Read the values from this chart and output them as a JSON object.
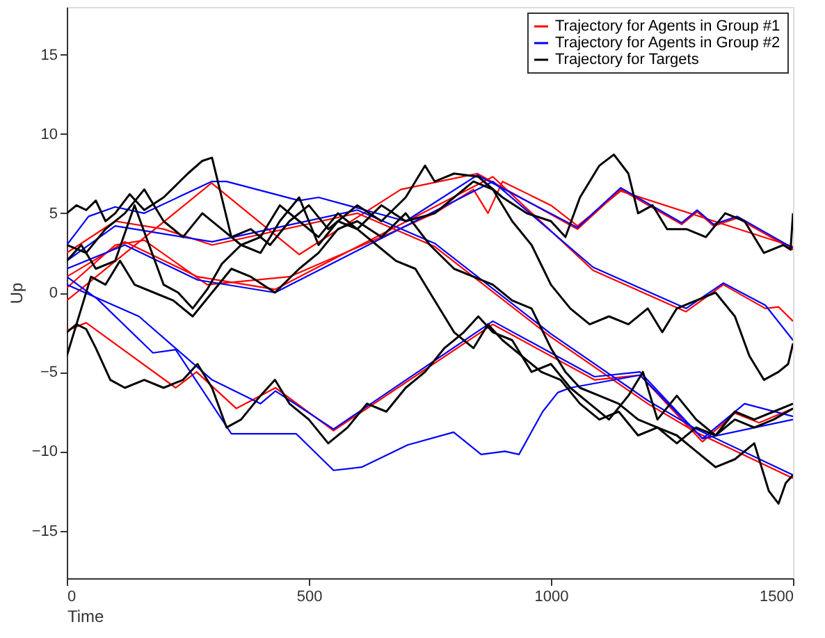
{
  "chart_data": {
    "type": "line",
    "xlabel": "Time",
    "ylabel": "Up",
    "xlim": [
      0,
      1500
    ],
    "xticks": [
      0,
      500,
      1000,
      1500
    ],
    "ylim": [
      -18,
      18
    ],
    "yticks": [
      -15,
      -10,
      -5,
      0,
      5,
      10,
      15
    ],
    "grid": false,
    "legend": "top right",
    "marker": "none",
    "line_style": "solid",
    "series": [
      {
        "name": "Trajectory for Agents in Group #1",
        "color": "#ff0000",
        "x": [
          0,
          299,
          480,
          690,
          848,
          1055,
          1144,
          1270,
          1302,
          1336,
          1385,
          1500
        ],
        "values": [
          -0.5,
          6.9,
          2.4,
          6.5,
          7.5,
          4.0,
          6.5,
          4.3,
          5.1,
          4.2,
          4.7,
          2.7
        ]
      },
      {
        "color": "#ff0000",
        "x": [
          0,
          120,
          270,
          430,
          880,
          1087,
          1279,
          1356,
          1443,
          1470,
          1500
        ],
        "values": [
          1.0,
          3.2,
          1.0,
          0.2,
          7.3,
          1.4,
          -1.2,
          0.5,
          -1.0,
          -0.9,
          -1.8
        ]
      },
      {
        "color": "#ff0000",
        "x": [
          0,
          40,
          225,
          268,
          350,
          431,
          551,
          880,
          1090,
          1184,
          1313,
          1380,
          1430,
          1500
        ],
        "values": [
          -2.4,
          -1.9,
          -6.0,
          -5.0,
          -7.3,
          -6.0,
          -8.7,
          -2.0,
          -5.5,
          -5.2,
          -9.4,
          -7.6,
          -8.2,
          -7.3
        ]
      },
      {
        "color": "#ff0000",
        "x": [
          0,
          100,
          200,
          300,
          600,
          760,
          1000,
          1200,
          1300,
          1500
        ],
        "values": [
          2.5,
          4.5,
          4.0,
          3.0,
          5.0,
          2.9,
          -2.8,
          -7.0,
          -8.8,
          -11.7
        ]
      },
      {
        "color": "#ff0000",
        "x": [
          0,
          100,
          160,
          290,
          460,
          650,
          760,
          840,
          870,
          900,
          1000,
          1055,
          1144,
          1500
        ],
        "values": [
          0.3,
          3.0,
          3.3,
          0.5,
          1.0,
          3.5,
          5.0,
          6.5,
          5.0,
          7.0,
          5.5,
          4.2,
          6.4,
          2.9
        ]
      },
      {
        "name": "Trajectory for Agents in Group #2",
        "color": "#0000ff",
        "x": [
          0,
          45,
          100,
          160,
          299,
          330,
          480,
          520,
          700,
          848,
          1055,
          1144,
          1270,
          1302,
          1336,
          1385,
          1500
        ],
        "values": [
          3.0,
          4.8,
          5.4,
          5.0,
          7.0,
          7.0,
          5.8,
          6.0,
          4.5,
          7.4,
          4.1,
          6.6,
          4.4,
          5.2,
          4.3,
          4.8,
          2.8
        ]
      },
      {
        "color": "#0000ff",
        "x": [
          0,
          120,
          270,
          430,
          880,
          1087,
          1279,
          1356,
          1443,
          1500
        ],
        "values": [
          1.5,
          3.0,
          0.8,
          0.0,
          7.0,
          1.6,
          -1.0,
          0.6,
          -0.8,
          -3.0
        ]
      },
      {
        "color": "#0000ff",
        "x": [
          0,
          63,
          178,
          225,
          340,
          474,
          551,
          609,
          704,
          799,
          856,
          905,
          934,
          983,
          1014,
          1040,
          1184,
          1313,
          1400,
          1500
        ],
        "values": [
          1.0,
          -0.4,
          -3.8,
          -3.6,
          -8.9,
          -8.9,
          -11.2,
          -11.0,
          -9.6,
          -8.8,
          -10.2,
          -10.0,
          -10.2,
          -7.5,
          -6.3,
          -6.0,
          -5.2,
          -9.2,
          -7.0,
          -7.8
        ]
      },
      {
        "color": "#0000ff",
        "x": [
          0,
          149,
          300,
          400,
          431,
          551,
          880,
          1090,
          1184,
          1313,
          1500
        ],
        "values": [
          0.5,
          -1.5,
          -5.5,
          -7.0,
          -6.2,
          -8.6,
          -1.8,
          -5.3,
          -5.0,
          -9.2,
          -8.0
        ]
      },
      {
        "color": "#0000ff",
        "x": [
          0,
          100,
          300,
          600,
          760,
          1000,
          1200,
          1300,
          1500
        ],
        "values": [
          2.0,
          4.2,
          3.2,
          5.2,
          3.1,
          -2.6,
          -6.8,
          -8.6,
          -11.5
        ]
      },
      {
        "name": "Trajectory for Targets",
        "color": "#000000",
        "x": [
          0,
          20,
          40,
          60,
          80,
          100,
          130,
          160,
          200,
          250,
          280,
          300,
          320,
          340,
          380,
          420,
          460,
          500,
          540,
          600,
          650,
          700,
          740,
          760,
          800,
          850,
          900,
          950,
          1000,
          1030,
          1060,
          1100,
          1130,
          1160,
          1180,
          1210,
          1240,
          1280,
          1320,
          1360,
          1400,
          1440,
          1480,
          1495,
          1500
        ],
        "values": [
          5.0,
          5.5,
          5.2,
          5.8,
          4.5,
          5.0,
          6.2,
          5.2,
          6.0,
          7.5,
          8.3,
          8.5,
          6.0,
          3.5,
          4.0,
          3.0,
          4.5,
          5.5,
          4.0,
          5.5,
          4.5,
          6.0,
          8.0,
          7.0,
          7.5,
          7.3,
          6.0,
          5.0,
          4.5,
          3.5,
          6.0,
          8.0,
          8.7,
          7.5,
          5.0,
          5.5,
          4.0,
          4.0,
          3.5,
          5.0,
          4.5,
          2.5,
          3.0,
          2.7,
          5.0
        ]
      },
      {
        "color": "#000000",
        "x": [
          0,
          30,
          60,
          100,
          140,
          170,
          200,
          230,
          260,
          290,
          320,
          360,
          400,
          440,
          480,
          520,
          560,
          600,
          650,
          700,
          760,
          800,
          840,
          880,
          920,
          960,
          1000,
          1040,
          1080,
          1120,
          1160,
          1200,
          1230,
          1260,
          1300,
          1340,
          1380,
          1410,
          1440,
          1470,
          1490,
          1500
        ],
        "values": [
          2.0,
          3.0,
          1.5,
          2.0,
          5.5,
          3.0,
          0.5,
          0.0,
          -1.0,
          0.2,
          1.8,
          3.0,
          2.5,
          4.5,
          6.0,
          3.0,
          4.5,
          4.0,
          5.5,
          4.5,
          5.0,
          6.0,
          7.0,
          6.5,
          4.5,
          3.0,
          0.5,
          -1.0,
          -2.0,
          -1.5,
          -2.0,
          -1.0,
          -2.5,
          -1.0,
          -0.5,
          0.0,
          -1.5,
          -4.0,
          -5.5,
          -5.0,
          -4.5,
          -3.2
        ]
      },
      {
        "color": "#000000",
        "x": [
          0,
          20,
          40,
          60,
          90,
          120,
          160,
          200,
          240,
          270,
          300,
          330,
          360,
          400,
          430,
          460,
          500,
          540,
          580,
          620,
          660,
          700,
          740,
          780,
          820,
          850,
          880,
          920,
          960,
          1000,
          1040,
          1080,
          1120,
          1160,
          1190,
          1220,
          1260,
          1300,
          1340,
          1380,
          1420,
          1460,
          1500
        ],
        "values": [
          -2.5,
          -2.0,
          -2.3,
          -3.5,
          -5.5,
          -6.0,
          -5.5,
          -6.0,
          -5.5,
          -4.5,
          -6.0,
          -8.5,
          -8.0,
          -6.5,
          -5.5,
          -7.0,
          -8.0,
          -9.5,
          -8.5,
          -7.0,
          -7.5,
          -6.0,
          -5.0,
          -3.5,
          -2.5,
          -1.5,
          -2.5,
          -3.0,
          -5.0,
          -4.5,
          -6.0,
          -7.0,
          -8.0,
          -6.5,
          -5.0,
          -8.0,
          -6.5,
          -8.0,
          -9.0,
          -7.5,
          -8.0,
          -7.5,
          -7.0
        ]
      },
      {
        "color": "#000000",
        "x": [
          0,
          20,
          50,
          80,
          110,
          140,
          180,
          220,
          260,
          300,
          340,
          380,
          430,
          480,
          520,
          560,
          600,
          650,
          700,
          750,
          800,
          840,
          880,
          920,
          960,
          1000,
          1030,
          1060,
          1100,
          1140,
          1180,
          1220,
          1260,
          1300,
          1340,
          1380,
          1420,
          1450,
          1470,
          1485,
          1500
        ],
        "values": [
          -4.0,
          -2.0,
          1.0,
          0.5,
          2.0,
          0.5,
          0.0,
          -0.5,
          -1.5,
          0.0,
          1.5,
          1.0,
          0.0,
          1.5,
          2.5,
          4.0,
          4.5,
          3.5,
          5.0,
          3.0,
          1.5,
          1.0,
          0.5,
          -0.5,
          -1.0,
          -3.5,
          -5.0,
          -6.0,
          -6.5,
          -7.0,
          -8.0,
          -8.5,
          -9.0,
          -10.0,
          -11.0,
          -10.5,
          -9.5,
          -12.5,
          -13.3,
          -12.0,
          -11.5
        ]
      },
      {
        "color": "#000000",
        "x": [
          0,
          40,
          80,
          120,
          160,
          200,
          240,
          280,
          320,
          360,
          400,
          440,
          480,
          520,
          560,
          600,
          640,
          680,
          720,
          760,
          800,
          840,
          870,
          900,
          940,
          980,
          1020,
          1060,
          1100,
          1140,
          1180,
          1220,
          1260,
          1300,
          1340,
          1380,
          1420,
          1460,
          1500
        ],
        "values": [
          3.0,
          2.5,
          4.0,
          5.0,
          6.5,
          4.5,
          3.5,
          5.0,
          4.0,
          3.0,
          3.5,
          5.5,
          4.5,
          3.5,
          5.0,
          4.0,
          3.0,
          2.0,
          1.5,
          -0.5,
          -2.5,
          -3.5,
          -2.0,
          -3.0,
          -4.0,
          -5.0,
          -5.5,
          -7.0,
          -8.0,
          -7.5,
          -9.0,
          -8.5,
          -9.5,
          -8.5,
          -9.0,
          -8.0,
          -8.5,
          -8.0,
          -7.3
        ]
      }
    ]
  }
}
